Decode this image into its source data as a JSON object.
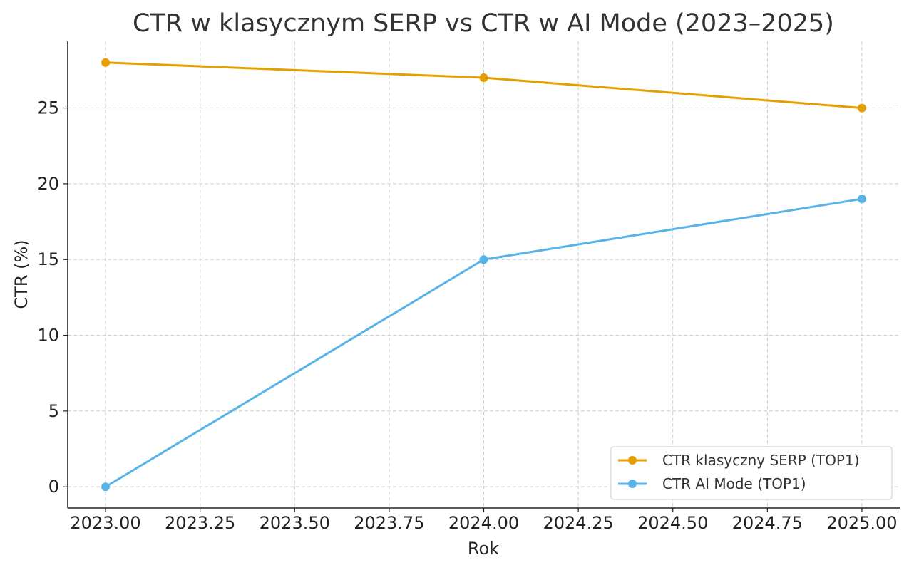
{
  "chart_data": {
    "type": "line",
    "title": "CTR w klasycznym SERP vs CTR w AI Mode (2023–2025)",
    "xlabel": "Rok",
    "ylabel": "CTR (%)",
    "x": [
      2023,
      2024,
      2025
    ],
    "xlim": [
      2022.9,
      2025.1
    ],
    "ylim": [
      -1.4,
      29.4
    ],
    "xticks": [
      2023.0,
      2023.25,
      2023.5,
      2023.75,
      2024.0,
      2024.25,
      2024.5,
      2024.75,
      2025.0
    ],
    "xtick_labels": [
      "2023.00",
      "2023.25",
      "2023.50",
      "2023.75",
      "2024.00",
      "2024.25",
      "2024.50",
      "2024.75",
      "2025.00"
    ],
    "yticks": [
      0,
      5,
      10,
      15,
      20,
      25
    ],
    "ytick_labels": [
      "0",
      "5",
      "10",
      "15",
      "20",
      "25"
    ],
    "grid": true,
    "legend_position": "bottom-right",
    "series": [
      {
        "name": "CTR klasyczny SERP (TOP1)",
        "values": [
          28,
          27,
          25
        ],
        "color": "#E69F00",
        "marker": "circle"
      },
      {
        "name": "CTR AI Mode (TOP1)",
        "values": [
          0,
          15,
          19
        ],
        "color": "#56B4E9",
        "marker": "circle"
      }
    ]
  }
}
